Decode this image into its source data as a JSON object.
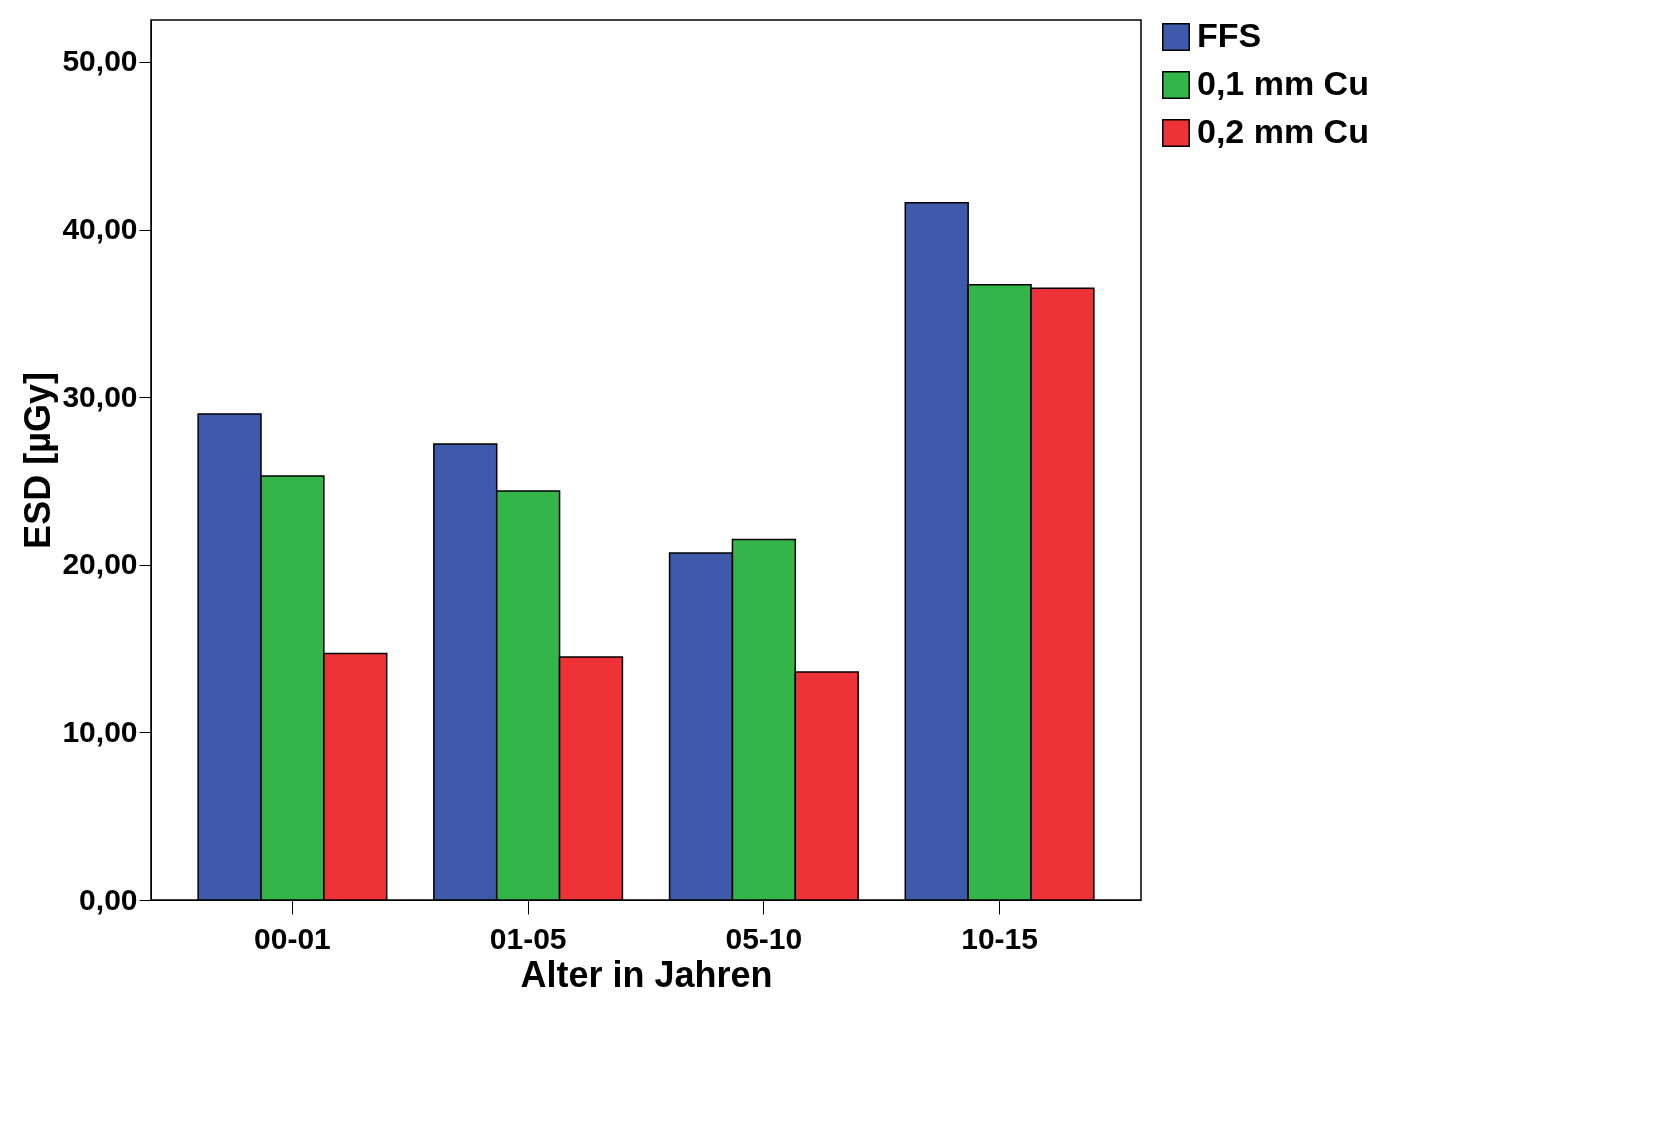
{
  "chart_data": {
    "type": "bar",
    "xlabel": "Alter in Jahren",
    "ylabel": "ESD [µGy]",
    "categories": [
      "00-01",
      "01-05",
      "05-10",
      "10-15"
    ],
    "series": [
      {
        "name": "FFS",
        "color": "#3f59ab",
        "values": [
          29.0,
          27.2,
          20.7,
          41.6
        ]
      },
      {
        "name": "0,1 mm Cu",
        "color": "#33b54a",
        "values": [
          25.3,
          24.4,
          21.5,
          36.7
        ]
      },
      {
        "name": "0,2 mm Cu",
        "color": "#ee3338",
        "values": [
          14.7,
          14.5,
          13.6,
          36.5
        ]
      }
    ],
    "ylim": [
      0,
      52.5
    ],
    "yticks": [
      {
        "value": 0,
        "label": "0,00"
      },
      {
        "value": 10,
        "label": "10,00"
      },
      {
        "value": 20,
        "label": "20,00"
      },
      {
        "value": 30,
        "label": "30,00"
      },
      {
        "value": 40,
        "label": "40,00"
      },
      {
        "value": 50,
        "label": "50,00"
      }
    ],
    "grid": false,
    "legend": "top right"
  }
}
